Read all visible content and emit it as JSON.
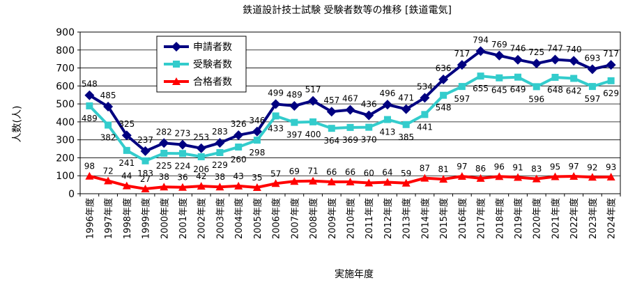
{
  "chart_data": {
    "type": "line",
    "title": "鉄道設計技士試験 受験者数等の推移 [鉄道電気]",
    "xlabel": "実施年度",
    "ylabel": "人数(人)",
    "ylim": [
      0,
      900
    ],
    "yticks": [
      "0",
      "100",
      "200",
      "300",
      "400",
      "500",
      "600",
      "700",
      "800",
      "900"
    ],
    "grid": true,
    "legend_position": "top-left",
    "categories": [
      "1996年度",
      "1997年度",
      "1998年度",
      "1999年度",
      "2000年度",
      "2001年度",
      "2002年度",
      "2003年度",
      "2004年度",
      "2005年度",
      "2006年度",
      "2007年度",
      "2008年度",
      "2009年度",
      "2010年度",
      "2011年度",
      "2012年度",
      "2013年度",
      "2014年度",
      "2015年度",
      "2016年度",
      "2017年度",
      "2018年度",
      "2019年度",
      "2020年度",
      "2021年度",
      "2022年度",
      "2023年度",
      "2024年度"
    ],
    "series": [
      {
        "name": "申請者数",
        "color": "#000080",
        "marker": "diamond",
        "values": [
          548,
          485,
          325,
          237,
          282,
          273,
          253,
          283,
          326,
          346,
          499,
          489,
          517,
          457,
          467,
          436,
          496,
          471,
          534,
          636,
          717,
          794,
          769,
          746,
          725,
          747,
          740,
          693,
          717
        ]
      },
      {
        "name": "受験者数",
        "color": "#33cccc",
        "marker": "square",
        "values": [
          489,
          382,
          241,
          183,
          225,
          224,
          206,
          229,
          260,
          298,
          433,
          397,
          400,
          364,
          369,
          370,
          413,
          385,
          441,
          548,
          597,
          655,
          645,
          649,
          596,
          648,
          642,
          597,
          629
        ]
      },
      {
        "name": "合格者数",
        "color": "#ff0000",
        "marker": "triangle",
        "values": [
          98,
          72,
          44,
          27,
          38,
          36,
          42,
          38,
          43,
          35,
          57,
          69,
          71,
          66,
          66,
          60,
          64,
          59,
          87,
          81,
          97,
          86,
          96,
          91,
          83,
          95,
          97,
          92,
          93
        ]
      }
    ]
  }
}
